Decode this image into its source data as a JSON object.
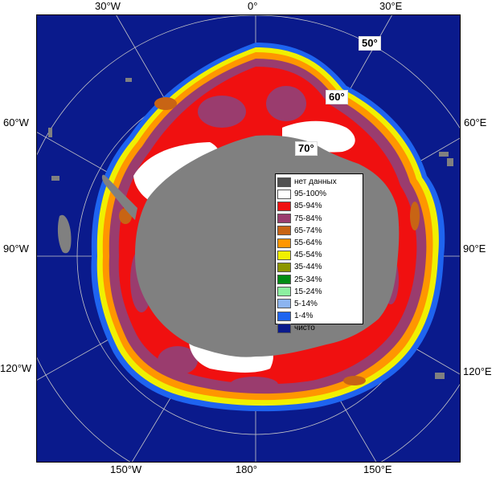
{
  "map": {
    "title": "",
    "edge_labels": {
      "top": [
        "30°W",
        "0°",
        "30°E"
      ],
      "bottom": [
        "150°W",
        "180°",
        "150°E"
      ],
      "left": [
        "60°W",
        "90°W",
        "120°W"
      ],
      "right": [
        "60°E",
        "90°E",
        "120°E"
      ]
    },
    "lat_labels": [
      "50°",
      "60°",
      "70°"
    ],
    "colors": {
      "ocean_open": "#0a1a8c",
      "no_data": "#808080",
      "graticule": "#c8c8c8"
    }
  },
  "legend": {
    "items": [
      {
        "label": "нет данных",
        "color": "#505050"
      },
      {
        "label": "95-100%",
        "color": "#ffffff"
      },
      {
        "label": "85-94%",
        "color": "#f01010"
      },
      {
        "label": "75-84%",
        "color": "#9a3c6e"
      },
      {
        "label": "65-74%",
        "color": "#c86414"
      },
      {
        "label": "55-64%",
        "color": "#ff9600"
      },
      {
        "label": "45-54%",
        "color": "#f0f000"
      },
      {
        "label": "35-44%",
        "color": "#8c9600"
      },
      {
        "label": "25-34%",
        "color": "#008c14"
      },
      {
        "label": "15-24%",
        "color": "#8cf0a0"
      },
      {
        "label": "5-14%",
        "color": "#8cb4f0"
      },
      {
        "label": "1-4%",
        "color": "#1e64f0"
      },
      {
        "label": "чисто",
        "color": "#0a1a8c"
      }
    ]
  }
}
